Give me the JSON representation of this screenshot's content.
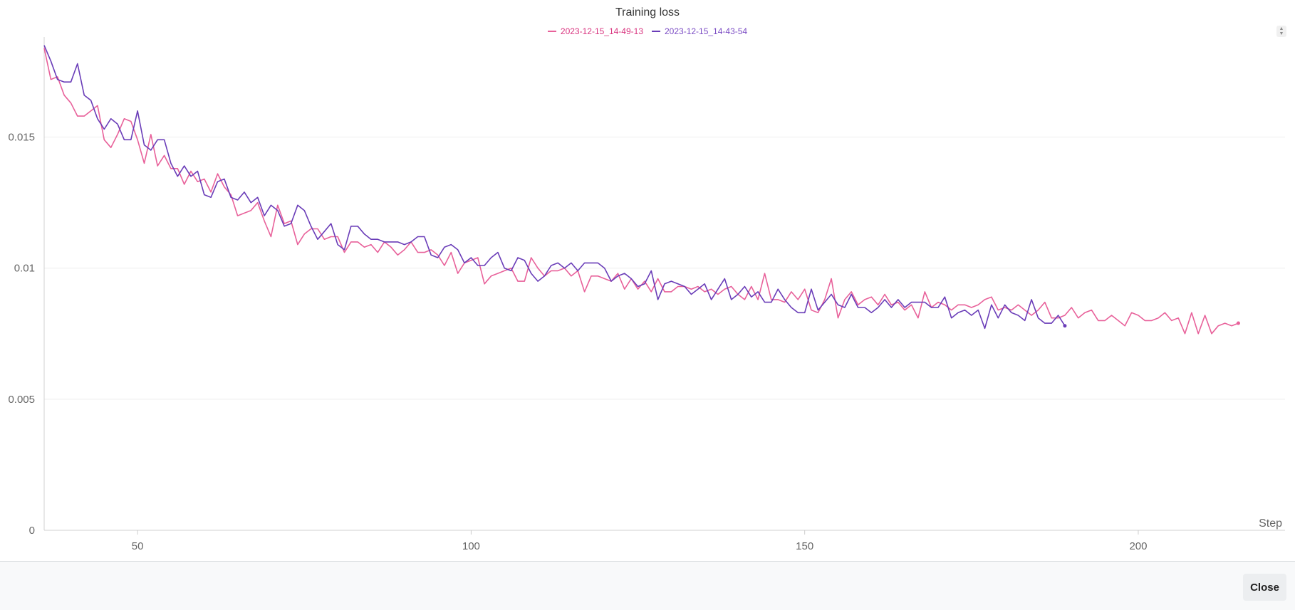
{
  "chart_data": {
    "type": "line",
    "title": "Training loss",
    "xlabel": "Step",
    "ylabel": "",
    "xlim": [
      36,
      222
    ],
    "ylim": [
      0,
      0.0186
    ],
    "xticks": [
      50,
      100,
      150,
      200
    ],
    "xtick_labels": [
      "50",
      "100",
      "150",
      "200"
    ],
    "yticks": [
      0,
      0.005,
      0.01,
      0.015
    ],
    "ytick_labels": [
      "0",
      "0.005",
      "0.01",
      "0.015"
    ],
    "grid": true,
    "legend": "top-center",
    "series": [
      {
        "name": "2023-12-15_14-49-13",
        "color": "#e8619a",
        "x_start": 36,
        "values": [
          0.0184,
          0.0172,
          0.0173,
          0.0166,
          0.0163,
          0.0158,
          0.0158,
          0.016,
          0.0162,
          0.0149,
          0.0146,
          0.0151,
          0.0157,
          0.0156,
          0.0149,
          0.014,
          0.0151,
          0.0139,
          0.0143,
          0.0138,
          0.0138,
          0.0132,
          0.0137,
          0.0133,
          0.0134,
          0.0129,
          0.0136,
          0.0131,
          0.0128,
          0.012,
          0.0121,
          0.0122,
          0.0125,
          0.0118,
          0.0112,
          0.0124,
          0.0117,
          0.0118,
          0.0109,
          0.0113,
          0.0115,
          0.0115,
          0.0111,
          0.0112,
          0.0112,
          0.0106,
          0.011,
          0.011,
          0.0108,
          0.0109,
          0.0106,
          0.011,
          0.0108,
          0.0105,
          0.0107,
          0.011,
          0.0106,
          0.0106,
          0.0107,
          0.0105,
          0.0101,
          0.0106,
          0.0098,
          0.0102,
          0.0103,
          0.0104,
          0.0094,
          0.0097,
          0.0098,
          0.0099,
          0.01,
          0.0095,
          0.0095,
          0.0104,
          0.01,
          0.0097,
          0.0099,
          0.0099,
          0.01,
          0.0097,
          0.0099,
          0.0091,
          0.0097,
          0.0097,
          0.0096,
          0.0095,
          0.0098,
          0.0092,
          0.0096,
          0.0092,
          0.0095,
          0.0091,
          0.0096,
          0.0091,
          0.0091,
          0.0093,
          0.0093,
          0.0092,
          0.0093,
          0.0091,
          0.0092,
          0.009,
          0.0092,
          0.0093,
          0.009,
          0.0088,
          0.0093,
          0.0088,
          0.0098,
          0.0088,
          0.0088,
          0.0087,
          0.0091,
          0.0088,
          0.0092,
          0.0084,
          0.0083,
          0.0088,
          0.0096,
          0.0081,
          0.0088,
          0.0091,
          0.0086,
          0.0088,
          0.0089,
          0.0086,
          0.009,
          0.0086,
          0.0087,
          0.0084,
          0.0086,
          0.0081,
          0.0091,
          0.0085,
          0.0087,
          0.0086,
          0.0084,
          0.0086,
          0.0086,
          0.0085,
          0.0086,
          0.0088,
          0.0089,
          0.0084,
          0.0085,
          0.0084,
          0.0086,
          0.0084,
          0.0082,
          0.0084,
          0.0087,
          0.0081,
          0.0081,
          0.0082,
          0.0085,
          0.0081,
          0.0083,
          0.0084,
          0.008,
          0.008,
          0.0082,
          0.008,
          0.0078,
          0.0083,
          0.0082,
          0.008,
          0.008,
          0.0081,
          0.0083,
          0.008,
          0.0081,
          0.0075,
          0.0083,
          0.0075,
          0.0082,
          0.0075,
          0.0078,
          0.0079,
          0.0078,
          0.0079
        ]
      },
      {
        "name": "2023-12-15_14-43-54",
        "color": "#6a3db8",
        "x_start": 36,
        "values": [
          0.0185,
          0.0179,
          0.0172,
          0.0171,
          0.0171,
          0.0178,
          0.0166,
          0.0164,
          0.0157,
          0.0153,
          0.0157,
          0.0155,
          0.0149,
          0.0149,
          0.016,
          0.0147,
          0.0145,
          0.0149,
          0.0149,
          0.014,
          0.0135,
          0.0139,
          0.0135,
          0.0137,
          0.0128,
          0.0127,
          0.0133,
          0.0134,
          0.0127,
          0.0126,
          0.0129,
          0.0125,
          0.0127,
          0.012,
          0.0124,
          0.0122,
          0.0116,
          0.0117,
          0.0124,
          0.0122,
          0.0116,
          0.0111,
          0.0114,
          0.0117,
          0.0109,
          0.0107,
          0.0116,
          0.0116,
          0.0113,
          0.0111,
          0.0111,
          0.011,
          0.011,
          0.011,
          0.0109,
          0.011,
          0.0112,
          0.0112,
          0.0105,
          0.0104,
          0.0108,
          0.0109,
          0.0107,
          0.0102,
          0.0104,
          0.0101,
          0.0101,
          0.0104,
          0.0106,
          0.01,
          0.0099,
          0.0104,
          0.0103,
          0.0098,
          0.0095,
          0.0097,
          0.0101,
          0.0102,
          0.01,
          0.0102,
          0.0099,
          0.0102,
          0.0102,
          0.0102,
          0.01,
          0.0095,
          0.0097,
          0.0098,
          0.0096,
          0.0093,
          0.0094,
          0.0099,
          0.0088,
          0.0094,
          0.0095,
          0.0094,
          0.0093,
          0.009,
          0.0092,
          0.0094,
          0.0088,
          0.0092,
          0.0096,
          0.0088,
          0.009,
          0.0093,
          0.0089,
          0.0091,
          0.0087,
          0.0087,
          0.0092,
          0.0088,
          0.0085,
          0.0083,
          0.0083,
          0.0092,
          0.0084,
          0.0087,
          0.009,
          0.0086,
          0.0085,
          0.009,
          0.0085,
          0.0085,
          0.0083,
          0.0085,
          0.0088,
          0.0085,
          0.0088,
          0.0085,
          0.0087,
          0.0087,
          0.0087,
          0.0085,
          0.0085,
          0.0089,
          0.0081,
          0.0083,
          0.0084,
          0.0082,
          0.0084,
          0.0077,
          0.0086,
          0.0081,
          0.0086,
          0.0083,
          0.0082,
          0.008,
          0.0088,
          0.0081,
          0.0079,
          0.0079,
          0.0082,
          0.0078
        ]
      }
    ]
  },
  "footer": {
    "close_label": "Close"
  }
}
